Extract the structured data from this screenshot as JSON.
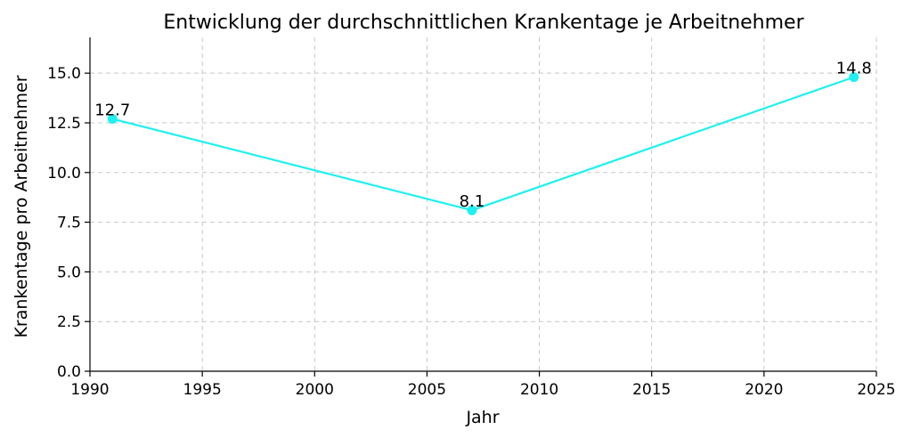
{
  "chart_data": {
    "type": "line",
    "title": "Entwicklung der durchschnittlichen Krankentage je Arbeitnehmer",
    "xlabel": "Jahr",
    "ylabel": "Krankentage pro Arbeitnehmer",
    "xlim": [
      1990,
      2025
    ],
    "ylim": [
      0,
      16.8
    ],
    "x_ticks": [
      "1990",
      "1995",
      "2000",
      "2005",
      "2010",
      "2015",
      "2020",
      "2025"
    ],
    "y_ticks": [
      "0.0",
      "2.5",
      "5.0",
      "7.5",
      "10.0",
      "12.5",
      "15.0"
    ],
    "grid": true,
    "series": [
      {
        "x": [
          1991,
          2007,
          2024
        ],
        "y": [
          12.7,
          8.1,
          14.8
        ],
        "labels": [
          "12.7",
          "8.1",
          "14.8"
        ],
        "color": "#1ff0f0"
      }
    ]
  }
}
